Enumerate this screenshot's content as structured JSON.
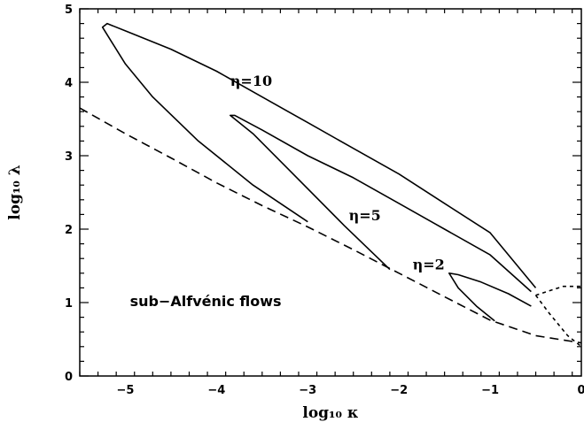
{
  "chart_data": {
    "type": "line",
    "xlabel": "log₁₀ κ",
    "ylabel": "log₁₀ λ",
    "xlim": [
      -5.5,
      0
    ],
    "ylim": [
      0,
      5
    ],
    "xticks": [
      "−5",
      "−4",
      "−3",
      "−2",
      "−1",
      "0"
    ],
    "yticks": [
      "0",
      "1",
      "2",
      "3",
      "4",
      "5"
    ],
    "xtick_values": [
      -5,
      -4,
      -3,
      -2,
      -1,
      0
    ],
    "ytick_values": [
      0,
      1,
      2,
      3,
      4,
      5
    ],
    "series": [
      {
        "name": "η=10",
        "style": "solid",
        "x": [
          -3.0,
          -3.6,
          -4.2,
          -4.7,
          -5.0,
          -5.15,
          -5.25,
          -5.2,
          -5.0,
          -4.5,
          -4.0,
          -3.5,
          -3.0,
          -2.5,
          -2.0,
          -1.5,
          -1.0,
          -0.5
        ],
        "y": [
          2.1,
          2.6,
          3.2,
          3.8,
          4.25,
          4.55,
          4.75,
          4.8,
          4.7,
          4.45,
          4.15,
          3.8,
          3.45,
          3.1,
          2.75,
          2.35,
          1.95,
          1.2
        ]
      },
      {
        "name": "η=5",
        "style": "solid",
        "x": [
          -2.1,
          -2.6,
          -3.2,
          -3.6,
          -3.85,
          -3.8,
          -3.5,
          -3.0,
          -2.5,
          -2.0,
          -1.5,
          -1.0,
          -0.55
        ],
        "y": [
          1.45,
          2.05,
          2.8,
          3.3,
          3.55,
          3.55,
          3.35,
          3.0,
          2.7,
          2.35,
          2.0,
          1.65,
          1.15
        ]
      },
      {
        "name": "η=2",
        "style": "solid",
        "x": [
          -0.95,
          -1.15,
          -1.35,
          -1.45,
          -1.35,
          -1.1,
          -0.8,
          -0.55
        ],
        "y": [
          0.75,
          0.95,
          1.2,
          1.4,
          1.38,
          1.28,
          1.12,
          0.95
        ]
      },
      {
        "name": "",
        "style": "dashed",
        "x": [
          -5.5,
          -5.0,
          -4.5,
          -4.0,
          -3.5,
          -3.0,
          -2.5,
          -2.0,
          -1.5,
          -1.0,
          -0.5,
          0.0
        ],
        "y": [
          3.65,
          3.3,
          2.97,
          2.63,
          2.32,
          2.03,
          1.72,
          1.4,
          1.08,
          0.76,
          0.55,
          0.45
        ]
      },
      {
        "name": "",
        "style": "dotted",
        "x": [
          -0.5,
          -0.2,
          0.0
        ],
        "y": [
          1.1,
          1.22,
          1.22
        ]
      },
      {
        "name": "",
        "style": "dotted",
        "x": [
          -0.5,
          -0.35,
          -0.15,
          0.0
        ],
        "y": [
          1.1,
          0.85,
          0.55,
          0.4
        ]
      }
    ],
    "annotations": [
      {
        "text": "η=10",
        "x": -3.85,
        "y": 3.95
      },
      {
        "text": "η=5",
        "x": -2.55,
        "y": 2.12
      },
      {
        "text": "η=2",
        "x": -1.85,
        "y": 1.45
      },
      {
        "text": "sub−Alfvénic flows",
        "x": -4.95,
        "y": 0.95
      }
    ],
    "grid": false,
    "legend": "none"
  }
}
